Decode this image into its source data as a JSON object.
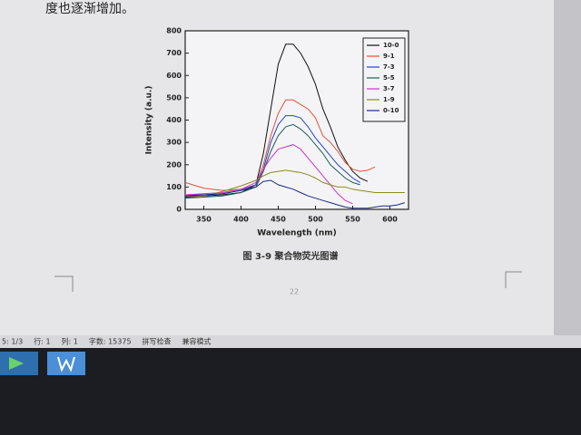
{
  "document": {
    "text": "度也逐渐增加。",
    "caption": "图 3-9  聚合物荧光图谱",
    "page_number": "22"
  },
  "status_bar": [
    "5: 1/3",
    "行: 1",
    "列: 1",
    "字数: 15375",
    "拼写检查",
    "兼容模式"
  ],
  "chart_data": {
    "type": "line",
    "x_label": "Wavelength (nm)",
    "y_label": "Intensity (a.u.)",
    "x": [
      325,
      350,
      375,
      400,
      420,
      430,
      440,
      450,
      460,
      470,
      480,
      490,
      500,
      510,
      520,
      530,
      540,
      550,
      560,
      570,
      580,
      590,
      600,
      610,
      620
    ],
    "series": [
      {
        "name": "10-0",
        "color": "#111111",
        "values": [
          55,
          60,
          65,
          75,
          110,
          250,
          450,
          650,
          740,
          740,
          700,
          640,
          560,
          450,
          370,
          280,
          220,
          170,
          140,
          125,
          null,
          null,
          null,
          null,
          null
        ]
      },
      {
        "name": "9-1",
        "color": "#e8503a",
        "values": [
          120,
          95,
          85,
          90,
          110,
          200,
          330,
          430,
          490,
          490,
          470,
          450,
          410,
          330,
          300,
          260,
          210,
          180,
          170,
          175,
          190,
          null,
          null,
          null,
          null
        ]
      },
      {
        "name": "7-3",
        "color": "#2244cc",
        "values": [
          65,
          65,
          70,
          85,
          110,
          180,
          300,
          380,
          420,
          420,
          410,
          370,
          320,
          280,
          240,
          200,
          170,
          140,
          120,
          null,
          null,
          null,
          null,
          null,
          null
        ]
      },
      {
        "name": "5-5",
        "color": "#1f5a5a",
        "values": [
          50,
          55,
          60,
          75,
          100,
          170,
          260,
          330,
          370,
          380,
          360,
          330,
          290,
          250,
          200,
          170,
          140,
          120,
          110,
          null,
          null,
          null,
          null,
          null,
          null
        ]
      },
      {
        "name": "3-7",
        "color": "#d030d0",
        "values": [
          65,
          70,
          75,
          90,
          120,
          180,
          230,
          270,
          280,
          290,
          270,
          230,
          190,
          150,
          110,
          70,
          40,
          25,
          null,
          null,
          null,
          null,
          null,
          null,
          null
        ]
      },
      {
        "name": "1-9",
        "color": "#8a8a20",
        "values": [
          60,
          60,
          80,
          105,
          130,
          150,
          165,
          170,
          175,
          170,
          165,
          155,
          140,
          120,
          110,
          100,
          100,
          90,
          85,
          80,
          75,
          75,
          75,
          75,
          75
        ]
      },
      {
        "name": "0-10",
        "color": "#1a2a80",
        "values": [
          60,
          65,
          70,
          85,
          100,
          125,
          130,
          110,
          100,
          90,
          75,
          60,
          50,
          40,
          30,
          20,
          10,
          5,
          5,
          5,
          10,
          15,
          15,
          20,
          30
        ]
      }
    ],
    "xlim": [
      325,
      625
    ],
    "ylim": [
      0,
      800
    ],
    "xticks": [
      350,
      400,
      450,
      500,
      550,
      600
    ],
    "yticks": [
      0,
      100,
      200,
      300,
      400,
      500,
      600,
      700,
      800
    ],
    "legend": "upper right"
  }
}
